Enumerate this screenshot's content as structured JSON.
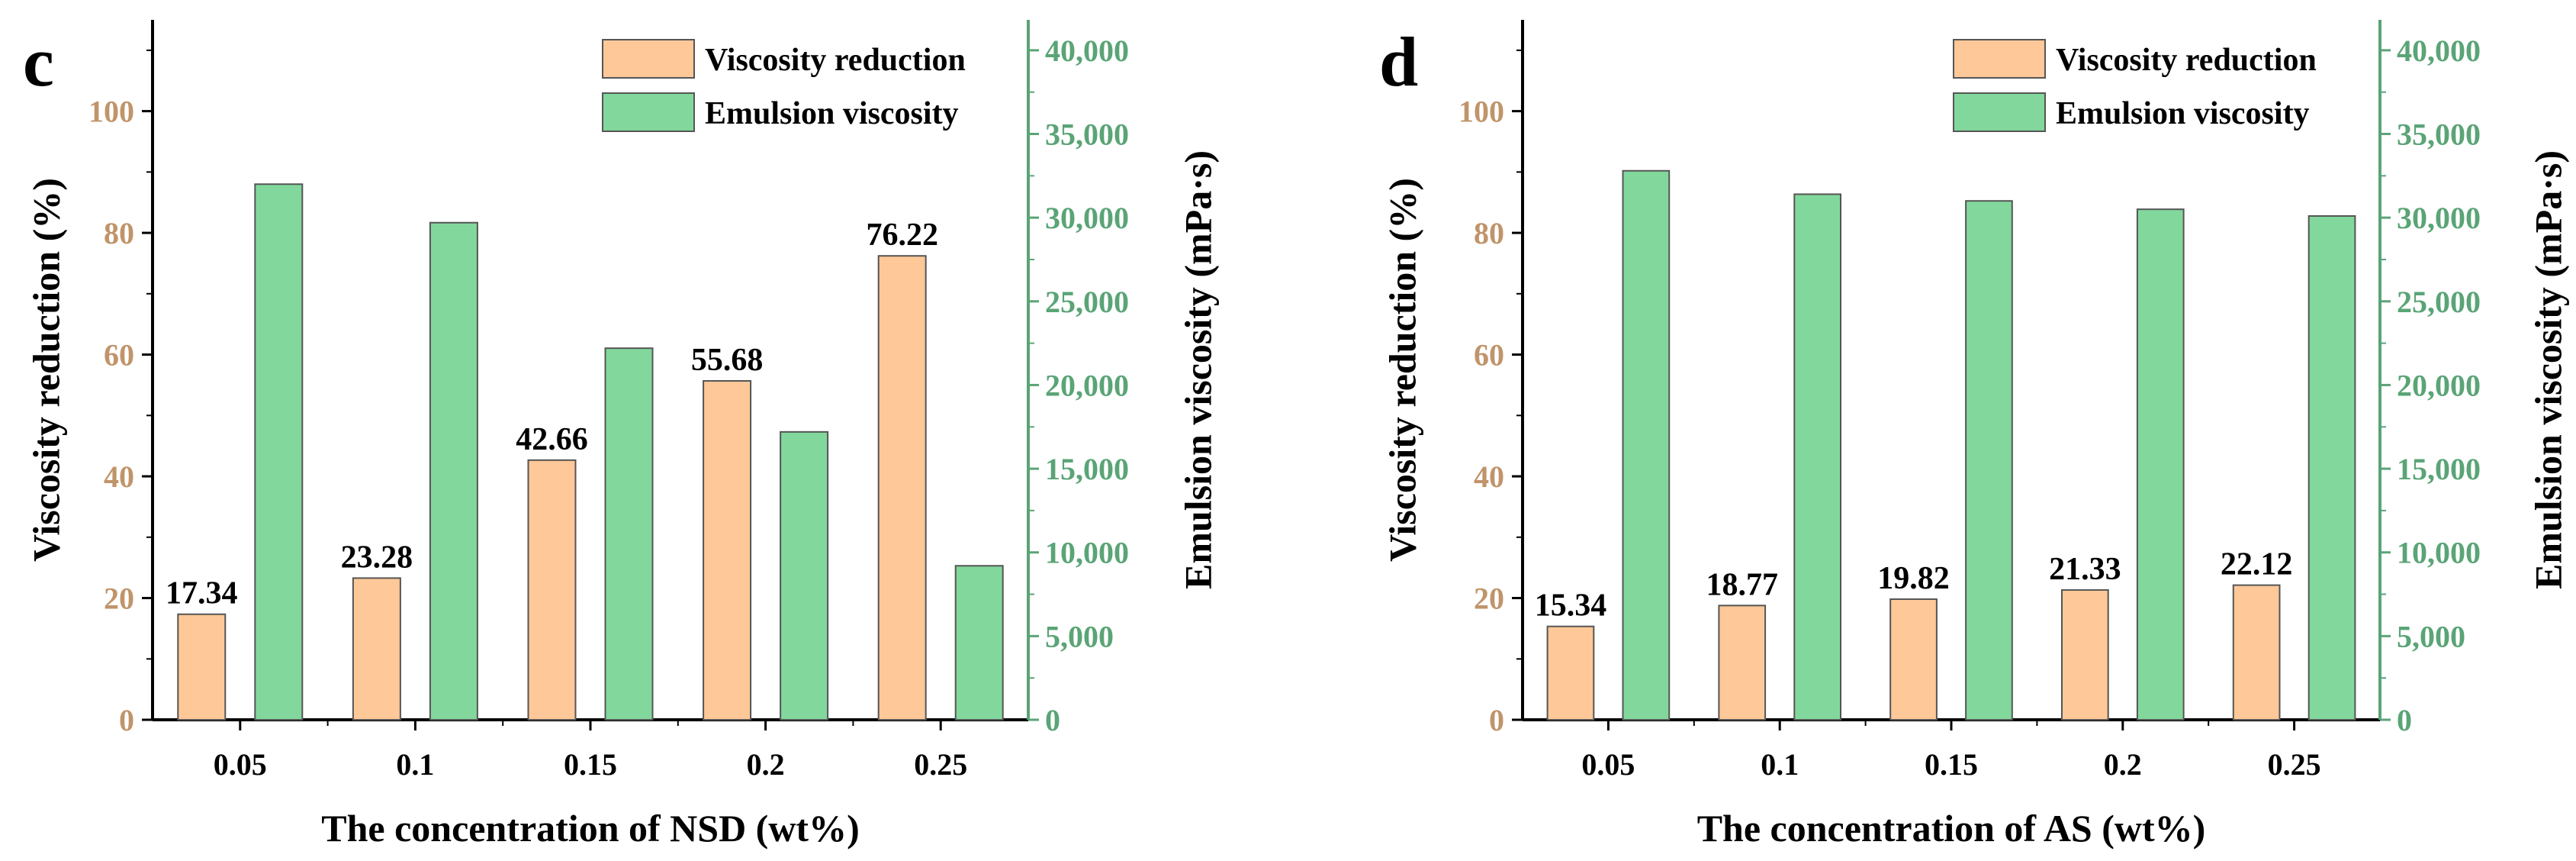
{
  "colors": {
    "bar_reduction": "#ffc898",
    "bar_emulsion": "#82d89c",
    "bar_stroke": "#555555",
    "left_axis": "#c0946a",
    "right_axis": "#5aa476",
    "frame": "#000000"
  },
  "chart_data": [
    {
      "type": "bar",
      "panel_label": "c",
      "xlabel": "The concentration of NSD (wt%)",
      "ylabel_left": "Viscosity reduction (%)",
      "ylabel_right": "Emulsion viscosity (mPa·s)",
      "categories": [
        "0.05",
        "0.1",
        "0.15",
        "0.2",
        "0.25"
      ],
      "ylim_left": [
        0,
        115
      ],
      "yticks_left": [
        "0",
        "20",
        "40",
        "60",
        "80",
        "100"
      ],
      "ylim_right": [
        0,
        41818
      ],
      "yticks_right": [
        "0",
        "5,000",
        "10,000",
        "15,000",
        "20,000",
        "25,000",
        "30,000",
        "35,000",
        "40,000"
      ],
      "legend": [
        "Viscosity reduction",
        "Emulsion viscosity"
      ],
      "series": [
        {
          "name": "Viscosity reduction",
          "axis": "left",
          "values": [
            17.34,
            23.28,
            42.66,
            55.68,
            76.22
          ],
          "labels": [
            "17.34",
            "23.28",
            "42.66",
            "55.68",
            "76.22"
          ]
        },
        {
          "name": "Emulsion viscosity",
          "axis": "right",
          "values": [
            32000,
            29700,
            22200,
            17200,
            9200
          ]
        }
      ]
    },
    {
      "type": "bar",
      "panel_label": "d",
      "xlabel": "The concentration of AS (wt%)",
      "ylabel_left": "Viscosity reduction (%)",
      "ylabel_right": "Emulsion viscosity (mPa·s)",
      "categories": [
        "0.05",
        "0.1",
        "0.15",
        "0.2",
        "0.25"
      ],
      "ylim_left": [
        0,
        115
      ],
      "yticks_left": [
        "0",
        "20",
        "40",
        "60",
        "80",
        "100"
      ],
      "ylim_right": [
        0,
        41818
      ],
      "yticks_right": [
        "0",
        "5,000",
        "10,000",
        "15,000",
        "20,000",
        "25,000",
        "30,000",
        "35,000",
        "40,000"
      ],
      "legend": [
        "Viscosity reduction",
        "Emulsion viscosity"
      ],
      "series": [
        {
          "name": "Viscosity reduction",
          "axis": "left",
          "values": [
            15.34,
            18.77,
            19.82,
            21.33,
            22.12
          ],
          "labels": [
            "15.34",
            "18.77",
            "19.82",
            "21.33",
            "22.12"
          ]
        },
        {
          "name": "Emulsion viscosity",
          "axis": "right",
          "values": [
            32800,
            31400,
            31000,
            30500,
            30100
          ]
        }
      ]
    }
  ]
}
